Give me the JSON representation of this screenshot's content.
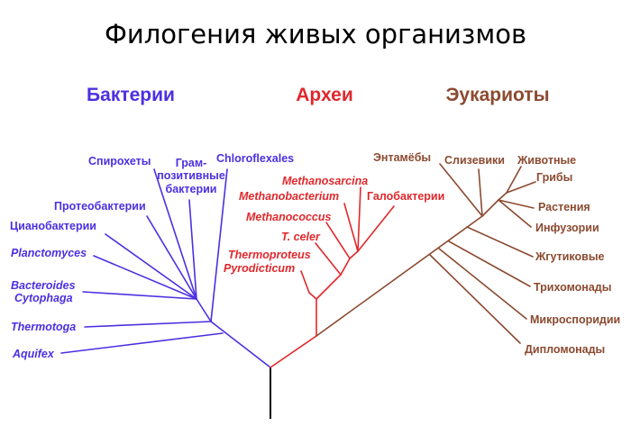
{
  "title": "Филогения живых организмов",
  "colors": {
    "root": "#000000",
    "bacteria": "#4b30e0",
    "archaea": "#e0282c",
    "eukaryota": "#8b4a30"
  },
  "groups": {
    "bacteria": "Бактерии",
    "archaea": "Археи",
    "eukaryota": "Эукариоты"
  },
  "bacteria_taxa": {
    "spirochetes": "Спирохеты",
    "gram_positive_line1": "Грам-",
    "gram_positive_line2": "позитивные",
    "gram_positive_line3": "бактерии",
    "chloroflexales": "Chloroflexales",
    "proteobacteria": "Протеобактерии",
    "cyanobacteria": "Цианобактерии",
    "planctomyces": "Planctomyces",
    "bacteroides": "Bacteroides",
    "cytophaga": "Cytophaga",
    "thermotoga": "Thermotoga",
    "aquifex": "Aquifex"
  },
  "archaea_taxa": {
    "methanosarcina": "Methanosarcina",
    "methanobacterium": "Methanobacterium",
    "halobacteria": "Галобактерии",
    "methanococcus": "Methanococcus",
    "t_celer": "T. celer",
    "thermoproteus": "Thermoproteus",
    "pyrodicticum": "Pyrodicticum"
  },
  "eukaryota_taxa": {
    "entamoebae": "Энтамёбы",
    "slime_molds": "Слизевики",
    "animals": "Животные",
    "fungi": "Грибы",
    "plants": "Растения",
    "ciliates": "Инфузории",
    "flagellates": "Жгутиковые",
    "trichomonads": "Трихомонады",
    "microsporidia": "Микроспоридии",
    "diplomonads": "Дипломонады"
  }
}
